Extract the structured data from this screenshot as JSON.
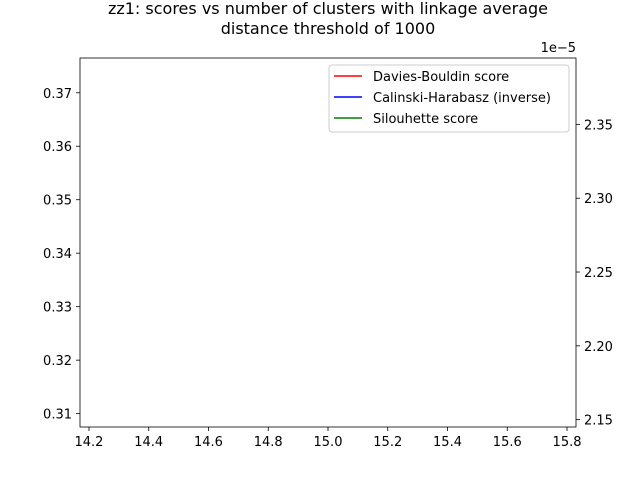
{
  "chart_data": {
    "type": "line",
    "title_lines": [
      "zz1: scores vs number of clusters with linkage average",
      "distance threshold of 1000"
    ],
    "xlabel": "",
    "ylabel": "",
    "ylabel_right": "",
    "xlim": [
      14.17,
      15.83
    ],
    "ylim_left": [
      0.3075,
      0.3765
    ],
    "ylim_right": [
      2.145e-05,
      2.395e-05
    ],
    "x_ticks": [
      "14.2",
      "14.4",
      "14.6",
      "14.8",
      "15.0",
      "15.2",
      "15.4",
      "15.6",
      "15.8"
    ],
    "x_tick_values": [
      14.2,
      14.4,
      14.6,
      14.8,
      15.0,
      15.2,
      15.4,
      15.6,
      15.8
    ],
    "y_left_ticks": [
      "0.31",
      "0.32",
      "0.33",
      "0.34",
      "0.35",
      "0.36",
      "0.37"
    ],
    "y_left_tick_values": [
      0.31,
      0.32,
      0.33,
      0.34,
      0.35,
      0.36,
      0.37
    ],
    "y_right_ticks": [
      "2.15",
      "2.20",
      "2.25",
      "2.30",
      "2.35"
    ],
    "y_right_tick_values": [
      2.15e-05,
      2.2e-05,
      2.25e-05,
      2.3e-05,
      2.35e-05
    ],
    "y_right_offset_label": "1e−5",
    "legend_position": "upper right",
    "grid": false,
    "series": [
      {
        "name": "Davies-Bouldin score",
        "color": "#ff0000",
        "axis": "left",
        "x": [],
        "values": []
      },
      {
        "name": "Calinski-Harabasz (inverse)",
        "color": "#0000ff",
        "axis": "right",
        "x": [],
        "values": []
      },
      {
        "name": "Silouhette score",
        "color": "#008000",
        "axis": "left",
        "x": [],
        "values": []
      }
    ]
  }
}
